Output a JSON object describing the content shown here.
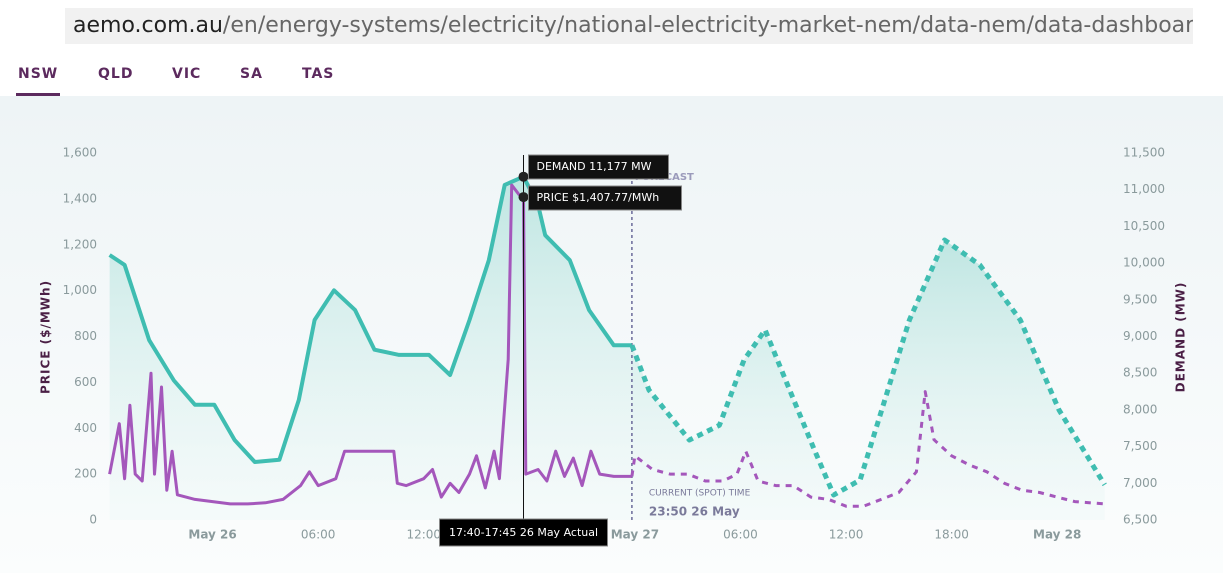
{
  "browser": {
    "url_domain": "aemo.com.au",
    "url_path": "/en/energy-systems/electricity/national-electricity-market-nem/data-nem/data-dashboard-nem"
  },
  "tabs": [
    "NSW",
    "QLD",
    "VIC",
    "SA",
    "TAS"
  ],
  "chart_data": {
    "type": "line",
    "y_label": "PRICE ($/MWh)",
    "y2_label": "DEMAND (MW)",
    "xlim": [
      -6,
      51
    ],
    "xticks": [
      {
        "value": 0,
        "label": "May 26"
      },
      {
        "value": 6,
        "label": "06:00"
      },
      {
        "value": 12,
        "label": "12:00"
      },
      {
        "value": 24,
        "label": "May 27"
      },
      {
        "value": 30,
        "label": "06:00"
      },
      {
        "value": 36,
        "label": "12:00"
      },
      {
        "value": 42,
        "label": "18:00"
      },
      {
        "value": 48,
        "label": "May 28"
      }
    ],
    "ylim": [
      0,
      1600
    ],
    "yticks": [
      0,
      200,
      400,
      600,
      800,
      {
        "value": 1000,
        "label": "1,000"
      },
      {
        "value": 1200,
        "label": "1,200"
      },
      {
        "value": 1400,
        "label": "1,400"
      },
      {
        "value": 1600,
        "label": "1,600"
      }
    ],
    "y2lim": [
      6500,
      11500
    ],
    "y2ticks": [
      {
        "value": 6500,
        "label": "6,500"
      },
      {
        "value": 7000,
        "label": "7,000"
      },
      {
        "value": 7500,
        "label": "7,500"
      },
      {
        "value": 8000,
        "label": "8,000"
      },
      {
        "value": 8500,
        "label": "8,500"
      },
      {
        "value": 9000,
        "label": "9,000"
      },
      {
        "value": 9500,
        "label": "9,500"
      },
      {
        "value": 10000,
        "label": "10,000"
      },
      {
        "value": 10500,
        "label": "10,500"
      },
      {
        "value": 11000,
        "label": "11,000"
      },
      {
        "value": 11500,
        "label": "11,500"
      }
    ],
    "grid": false,
    "series": [
      {
        "axis": "y2",
        "color": "#3fbdb1",
        "dashed": false,
        "area": true,
        "x": [
          -5.85,
          -5,
          -3.6,
          -2.2,
          -1,
          0.1,
          1.25,
          2.4,
          3.8,
          4.9,
          5.8,
          6.9,
          8.1,
          9.2,
          10.6,
          12.3,
          13.5,
          14.6,
          15.7,
          16.6,
          17.67,
          18.5,
          18.9,
          20.3,
          21.4,
          22.8,
          23.83
        ],
        "values": [
          10110,
          9975,
          8950,
          8400,
          8070,
          8070,
          7590,
          7290,
          7320,
          8135,
          9225,
          9630,
          9360,
          8820,
          8750,
          8750,
          8475,
          9225,
          10040,
          11065,
          11177,
          10790,
          10380,
          10040,
          9360,
          8880,
          8880
        ]
      },
      {
        "axis": "y2",
        "color": "#3fbdb1",
        "dashed": true,
        "area": true,
        "x": [
          23.83,
          24.8,
          27.1,
          28.8,
          30.2,
          31.4,
          32.8,
          34.2,
          35.3,
          36.8,
          38.2,
          39.6,
          41.6,
          43.6,
          45.9,
          48.1,
          50.7
        ],
        "values": [
          8880,
          8270,
          7590,
          7790,
          8680,
          9090,
          8270,
          7455,
          6840,
          7045,
          8135,
          9225,
          10315,
          9975,
          9225,
          8000,
          6980
        ]
      },
      {
        "axis": "y",
        "color": "#a457bb",
        "dashed": false,
        "area": false,
        "x": [
          -5.85,
          -5.3,
          -5,
          -4.7,
          -4.4,
          -4,
          -3.5,
          -3.3,
          -2.9,
          -2.6,
          -2.3,
          -2,
          -1,
          0,
          1,
          2,
          3,
          4,
          5,
          5.5,
          6,
          7,
          7.5,
          9,
          10.3,
          10.5,
          11,
          12,
          12.5,
          13,
          13.5,
          14,
          14.6,
          15,
          15.5,
          16,
          16.3,
          16.8,
          17,
          17.4,
          17.67,
          17.8,
          18.5,
          19,
          19.5,
          20,
          20.5,
          21,
          21.5,
          22,
          22.8,
          23.83
        ],
        "values": [
          200,
          420,
          180,
          500,
          200,
          170,
          640,
          200,
          580,
          130,
          300,
          110,
          90,
          80,
          70,
          70,
          75,
          90,
          150,
          210,
          150,
          180,
          300,
          300,
          300,
          160,
          150,
          180,
          220,
          100,
          160,
          120,
          200,
          280,
          140,
          300,
          180,
          700,
          1460,
          1420,
          1408,
          200,
          220,
          170,
          300,
          190,
          270,
          150,
          300,
          200,
          190,
          190
        ]
      },
      {
        "axis": "y",
        "color": "#a457bb",
        "dashed": true,
        "area": false,
        "x": [
          23.83,
          24,
          25,
          26,
          27,
          28,
          29,
          29.8,
          30.3,
          31,
          32,
          33,
          34,
          35,
          36,
          37,
          38,
          39,
          40,
          40.5,
          41,
          42,
          43,
          44,
          45,
          46,
          47,
          48,
          49,
          50.7
        ],
        "values": [
          190,
          280,
          220,
          200,
          200,
          170,
          170,
          200,
          300,
          170,
          150,
          150,
          100,
          90,
          60,
          60,
          90,
          120,
          210,
          560,
          350,
          280,
          240,
          210,
          160,
          130,
          120,
          100,
          80,
          70
        ]
      }
    ],
    "forecast_label": "FORECAST",
    "current": {
      "label": "CURRENT (SPOT) TIME",
      "time": "23:50 26 May",
      "x": 23.83
    },
    "tooltip": {
      "x": 17.67,
      "time_label": "17:40-17:45 26 May Actual",
      "demand_label": "DEMAND 11,177 MW",
      "demand": 11177,
      "price_label": "PRICE $1,407.77/MWh",
      "price": 1407.77
    }
  }
}
